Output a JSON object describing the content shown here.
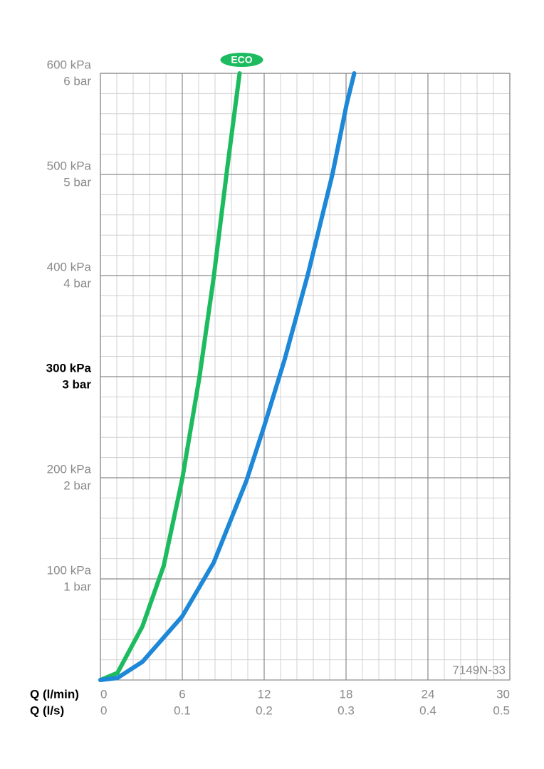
{
  "chart_data": {
    "type": "line",
    "xlabel": "Q (l/min)",
    "x2label": "Q (l/s)",
    "xlim": [
      0,
      30
    ],
    "xticks": [
      0,
      6,
      12,
      18,
      24,
      30
    ],
    "x2lim": [
      0,
      0.5
    ],
    "x2ticks": [
      0,
      0.1,
      0.2,
      0.3,
      0.4,
      0.5
    ],
    "ylim": [
      0,
      600
    ],
    "yticks": [
      {
        "value": 100,
        "label": "100 kPa"
      },
      {
        "value": 200,
        "label": "200 kPa"
      },
      {
        "value": 300,
        "label": "300 kPa"
      },
      {
        "value": 400,
        "label": "400 kPa"
      },
      {
        "value": 500,
        "label": "500 kPa"
      },
      {
        "value": 600,
        "label": "600 kPa"
      }
    ],
    "y2lim": [
      0,
      6
    ],
    "y2ticks": [
      {
        "value": 1,
        "label": "1 bar"
      },
      {
        "value": 2,
        "label": "2 bar"
      },
      {
        "value": 3,
        "label": "3 bar"
      },
      {
        "value": 4,
        "label": "4 bar"
      },
      {
        "value": 5,
        "label": "5 bar"
      },
      {
        "value": 6,
        "label": "6 bar"
      }
    ],
    "bold_ytick": 300,
    "grid": true,
    "minor_grid": {
      "x": 1.2,
      "y": 20
    },
    "annotation": "7149N-33",
    "series": [
      {
        "name": "ECO",
        "color": "#1dbb5f",
        "x": [
          0,
          1.25,
          3.08,
          4.64,
          6.0,
          7.25,
          8.3,
          9.34,
          10.2
        ],
        "values": [
          0,
          7,
          53,
          113,
          199,
          299,
          398,
          511,
          600
        ]
      },
      {
        "color": "#1d87d8",
        "x": [
          0,
          1.25,
          3.08,
          6.0,
          8.3,
          10.7,
          12.0,
          13.5,
          15.2,
          17.0,
          18.05,
          18.6
        ],
        "values": [
          0,
          2,
          18,
          63,
          116,
          197,
          251,
          317,
          401,
          500,
          570,
          600
        ]
      }
    ]
  }
}
